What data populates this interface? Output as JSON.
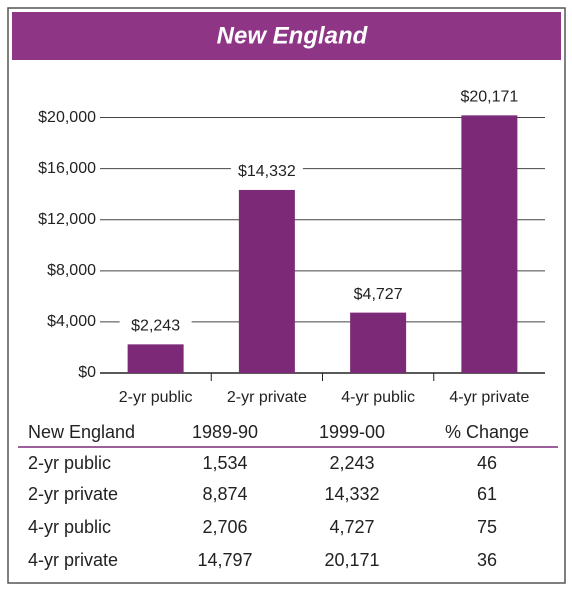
{
  "chart_data": {
    "type": "bar",
    "title": "New England",
    "categories": [
      "2-yr public",
      "2-yr private",
      "4-yr public",
      "4-yr private"
    ],
    "values": [
      2243,
      14332,
      4727,
      20171
    ],
    "value_labels": [
      "$2,243",
      "$14,332",
      "$4,727",
      "$20,171"
    ],
    "color": "#7c2a78",
    "ylim": [
      0,
      22000
    ],
    "yticks": [
      {
        "value": 0,
        "label": "$0"
      },
      {
        "value": 4000,
        "label": "$4,000"
      },
      {
        "value": 8000,
        "label": "$8,000"
      },
      {
        "value": 12000,
        "label": "$12,000"
      },
      {
        "value": 16000,
        "label": "$16,000"
      },
      {
        "value": 20000,
        "label": "$20,000"
      }
    ],
    "grid": true
  },
  "table": {
    "header": [
      "New England",
      "1989-90",
      "1999-00",
      "% Change"
    ],
    "rows": [
      [
        "2-yr public",
        "1,534",
        "2,243",
        "46"
      ],
      [
        "2-yr private",
        "8,874",
        "14,332",
        "61"
      ],
      [
        "4-yr public",
        "2,706",
        "4,727",
        "75"
      ],
      [
        "4-yr private",
        "14,797",
        "20,171",
        "36"
      ]
    ]
  }
}
